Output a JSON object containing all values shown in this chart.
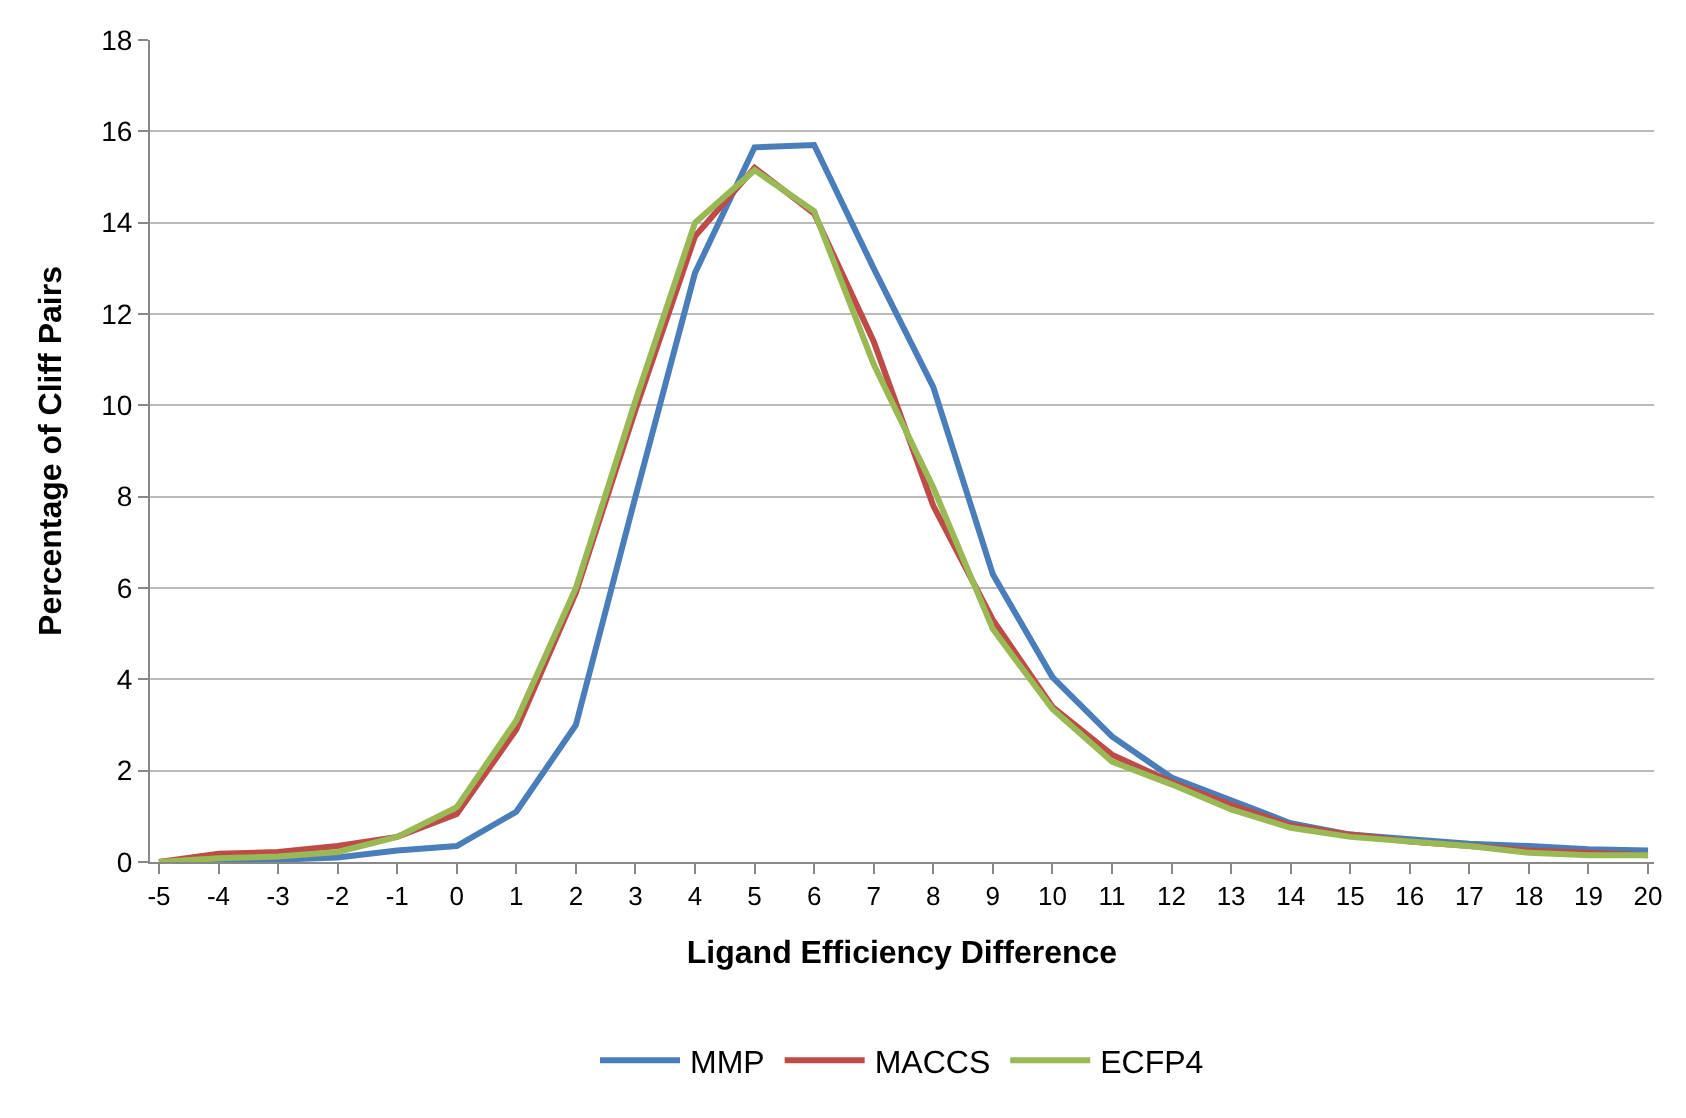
{
  "chart_data": {
    "type": "line",
    "xlabel": "Ligand Efficiency Difference",
    "ylabel": "Percentage of Cliff Pairs",
    "x": [
      -5,
      -4,
      -3,
      -2,
      -1,
      0,
      1,
      2,
      3,
      4,
      5,
      6,
      7,
      8,
      9,
      10,
      11,
      12,
      13,
      14,
      15,
      16,
      17,
      18,
      19,
      20
    ],
    "xlim": [
      -5.15,
      20.1
    ],
    "xticks": [
      -5,
      -4,
      -3,
      -2,
      -1,
      0,
      1,
      2,
      3,
      4,
      5,
      6,
      7,
      8,
      9,
      10,
      11,
      12,
      13,
      14,
      15,
      16,
      17,
      18,
      19,
      20
    ],
    "series": [
      {
        "name": "MMP",
        "color": "#4a7ebb",
        "values": [
          0,
          0.05,
          0.05,
          0.1,
          0.25,
          0.35,
          1.1,
          3.0,
          8.0,
          12.9,
          15.65,
          15.7,
          13.0,
          10.4,
          6.3,
          4.05,
          2.75,
          1.85,
          1.35,
          0.85,
          0.6,
          0.5,
          0.4,
          0.35,
          0.28,
          0.25
        ]
      },
      {
        "name": "MACCS",
        "color": "#be4b48",
        "values": [
          0,
          0.18,
          0.22,
          0.35,
          0.55,
          1.05,
          2.9,
          5.9,
          9.9,
          13.7,
          15.2,
          14.2,
          11.4,
          7.8,
          5.3,
          3.4,
          2.35,
          1.75,
          1.25,
          0.8,
          0.6,
          0.45,
          0.35,
          0.25,
          0.2,
          0.15
        ]
      },
      {
        "name": "ECFP4",
        "color": "#98b954",
        "values": [
          0,
          0.08,
          0.12,
          0.22,
          0.55,
          1.2,
          3.1,
          6.0,
          10.1,
          14.0,
          15.15,
          14.25,
          10.9,
          8.2,
          5.1,
          3.35,
          2.2,
          1.7,
          1.15,
          0.75,
          0.55,
          0.45,
          0.35,
          0.2,
          0.15,
          0.15
        ]
      }
    ],
    "ylim": [
      0,
      18
    ],
    "yticks": [
      0,
      2,
      4,
      6,
      8,
      10,
      12,
      14,
      16,
      18
    ],
    "grid": "y",
    "legend": "bottom",
    "marker": "none",
    "line_style": "solid"
  }
}
